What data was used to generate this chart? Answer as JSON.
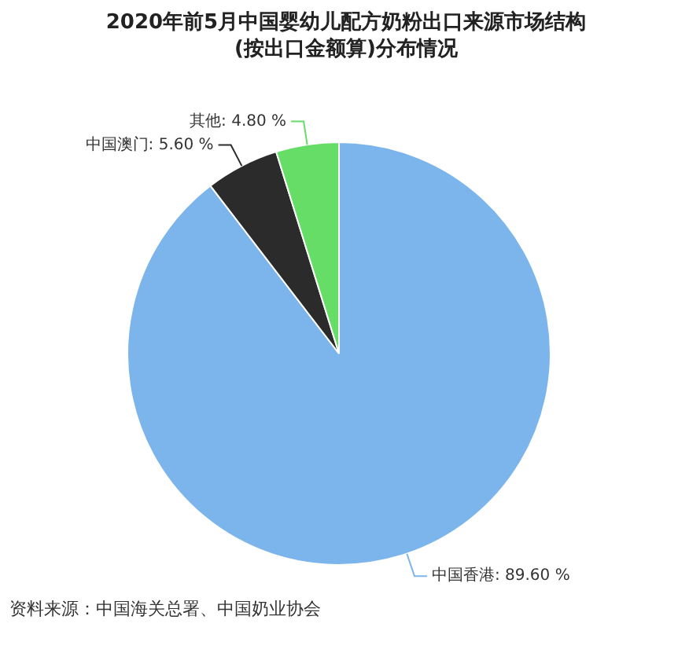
{
  "chart_data": {
    "type": "pie",
    "title": "2020年前5月中国婴幼儿配方奶粉出口来源市场结构(按出口金额算)分布情况",
    "categories": [
      "中国香港",
      "中国澳门",
      "其他"
    ],
    "values": [
      89.6,
      5.6,
      4.8
    ],
    "colors": [
      "#7cb5ec",
      "#2b2b2b",
      "#66dd66"
    ],
    "value_labels": [
      "89.60 %",
      "5.60 %",
      "4.80 %"
    ],
    "legend": false,
    "annotations": [
      "资料来源：中国海关总署、中国奶业协会"
    ]
  }
}
